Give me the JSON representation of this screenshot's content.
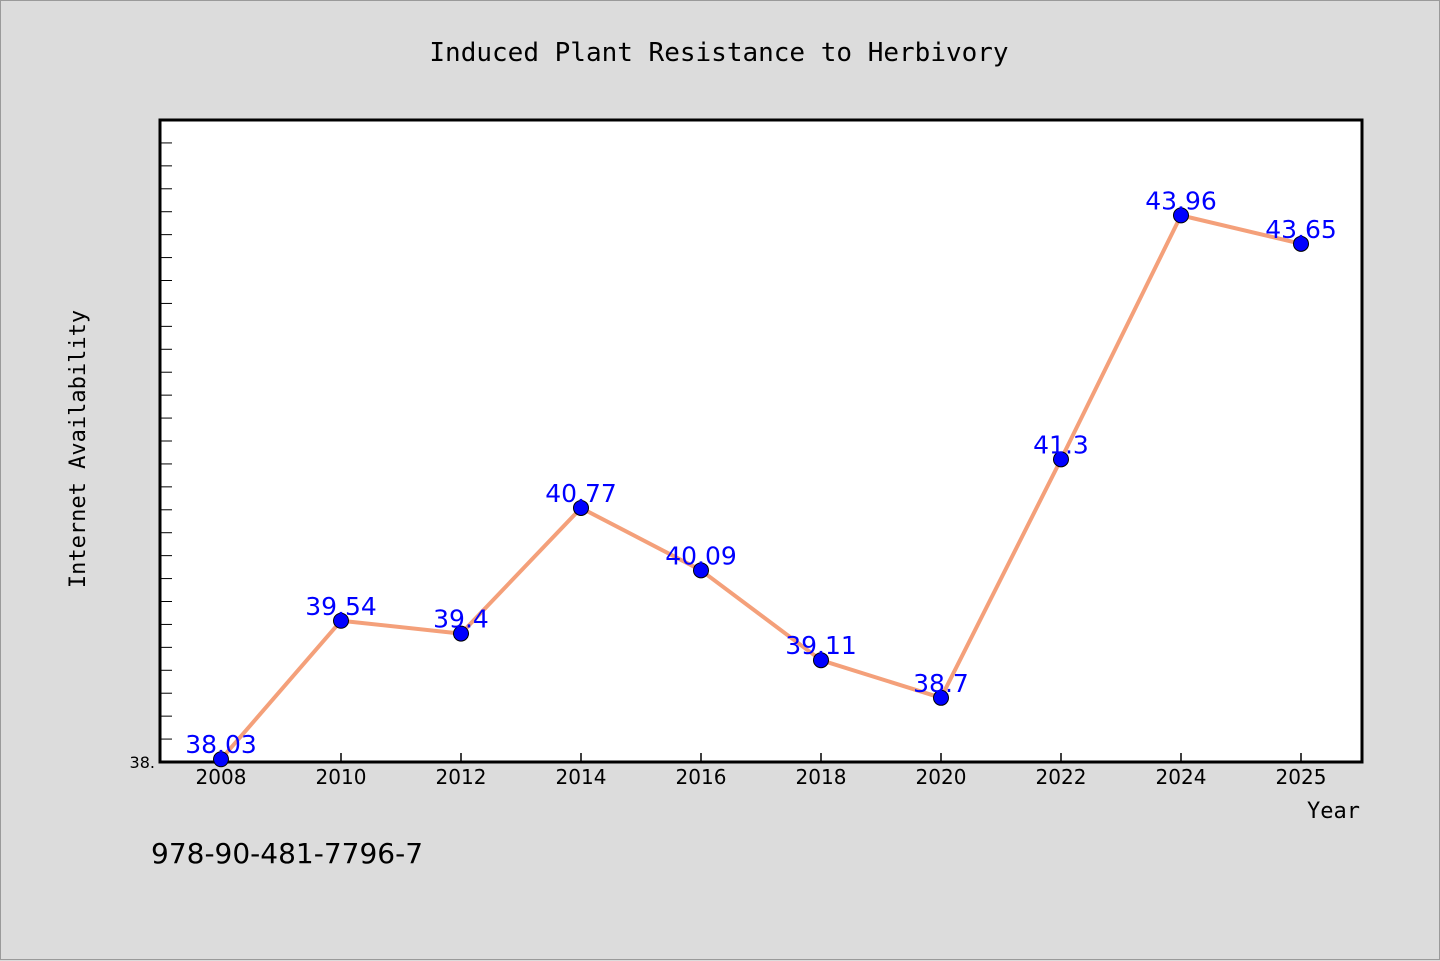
{
  "chart_data": {
    "type": "line",
    "title": "Induced Plant Resistance to Herbivory",
    "xlabel": "Year",
    "ylabel": "Internet Availability",
    "categories": [
      "2008",
      "2010",
      "2012",
      "2014",
      "2016",
      "2018",
      "2020",
      "2022",
      "2024",
      "2025"
    ],
    "series": [
      {
        "values": [
          38.03,
          39.54,
          39.4,
          40.77,
          40.09,
          39.11,
          38.7,
          41.3,
          43.96,
          43.65
        ],
        "data_labels": [
          "38.03",
          "39.54",
          "39.4",
          "40.77",
          "40.09",
          "39.11",
          "38.7",
          "41.3",
          "43.96",
          "43.65"
        ],
        "line_color": "#f4a07a",
        "marker_color": "#0000ff"
      }
    ],
    "ylim": [
      38.0,
      45.0
    ],
    "y_tick_labels": [
      "38."
    ],
    "grid": false,
    "legend": "none"
  },
  "footer": {
    "isbn": "978-90-481-7796-7"
  },
  "colors": {
    "background": "#dcdcdc",
    "plot_background": "#ffffff",
    "label_color": "#0000ff"
  }
}
